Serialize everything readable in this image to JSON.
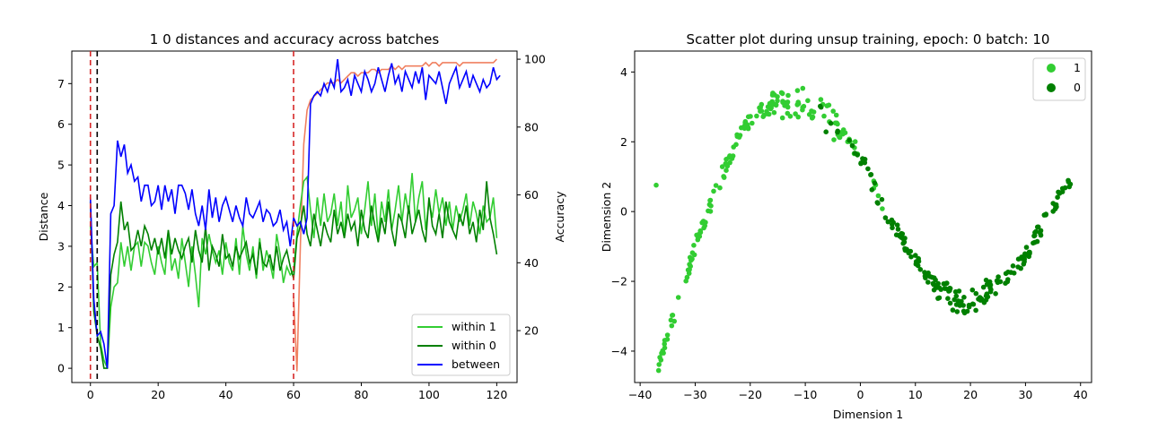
{
  "chart_data": [
    {
      "type": "line",
      "title": "1 0 distances and accuracy across batches",
      "xlabel": "",
      "ylabel": "Distance",
      "y2label": "Accuracy",
      "xlim": [
        -5.5,
        126
      ],
      "ylim": [
        -0.35,
        7.8
      ],
      "y2lim": [
        4.7,
        102.4
      ],
      "xticks": [
        0,
        20,
        40,
        60,
        80,
        100,
        120
      ],
      "yticks": [
        0,
        1,
        2,
        3,
        4,
        5,
        6,
        7
      ],
      "y2ticks": [
        20,
        40,
        60,
        80,
        100
      ],
      "vlines": [
        {
          "x": 0,
          "color": "#d62728"
        },
        {
          "x": 2,
          "color": "#000000"
        },
        {
          "x": 60,
          "color": "#d62728"
        }
      ],
      "legend_position": "lower right",
      "series": [
        {
          "name": "within 1",
          "color": "#32cd32",
          "axis": "left",
          "x_start": 0,
          "values": [
            3.5,
            2.5,
            2.6,
            0.6,
            0.2,
            0.0,
            1.5,
            2.0,
            2.1,
            3.1,
            2.5,
            3.0,
            2.4,
            3.0,
            3.1,
            2.5,
            3.1,
            3.0,
            2.6,
            2.3,
            3.0,
            2.6,
            2.3,
            3.4,
            2.4,
            2.7,
            2.2,
            3.2,
            2.6,
            2.0,
            3.0,
            2.3,
            1.5,
            3.2,
            2.8,
            3.3,
            2.9,
            2.6,
            2.9,
            2.3,
            3.1,
            2.6,
            2.4,
            3.2,
            2.3,
            3.5,
            2.8,
            2.4,
            3.0,
            2.2,
            3.2,
            2.4,
            2.9,
            2.6,
            2.2,
            3.3,
            2.8,
            2.1,
            2.5,
            2.3,
            2.4,
            3.3,
            4.0,
            4.6,
            4.7,
            3.9,
            3.2,
            4.2,
            3.5,
            4.3,
            3.6,
            3.8,
            4.3,
            3.5,
            4.1,
            3.2,
            4.5,
            3.7,
            3.9,
            4.2,
            3.3,
            3.9,
            4.6,
            3.5,
            4.3,
            3.2,
            4.1,
            3.6,
            4.4,
            3.4,
            3.9,
            4.5,
            3.6,
            4.3,
            3.8,
            4.8,
            3.6,
            4.2,
            4.6,
            3.4,
            4.1,
            3.7,
            4.4,
            3.8,
            4.2,
            3.5,
            4.1,
            3.4,
            4.0,
            3.6,
            3.9,
            4.3,
            3.5,
            4.1,
            3.8,
            3.3,
            4.0,
            3.6,
            3.7,
            4.2,
            3.2
          ]
        },
        {
          "name": "within 0",
          "color": "#008000",
          "axis": "left",
          "x_start": 0,
          "values": [
            4.1,
            1.4,
            0.8,
            0.5,
            0.0,
            0.0,
            2.3,
            2.8,
            3.1,
            4.1,
            3.4,
            3.6,
            2.9,
            3.0,
            3.4,
            3.0,
            3.5,
            3.3,
            2.9,
            3.2,
            2.8,
            3.2,
            2.7,
            3.4,
            2.8,
            3.2,
            2.9,
            2.7,
            3.0,
            3.2,
            2.6,
            3.4,
            2.9,
            2.6,
            3.5,
            2.4,
            3.0,
            2.8,
            2.5,
            3.3,
            2.7,
            2.8,
            2.5,
            3.0,
            2.7,
            2.9,
            3.1,
            2.6,
            2.8,
            2.3,
            3.1,
            2.6,
            2.5,
            2.8,
            2.4,
            3.0,
            2.4,
            2.7,
            2.9,
            2.5,
            2.2,
            3.2,
            3.5,
            4.0,
            3.3,
            3.0,
            3.8,
            3.4,
            3.0,
            3.6,
            3.3,
            3.1,
            3.9,
            3.3,
            3.6,
            3.2,
            3.8,
            3.4,
            3.6,
            3.0,
            3.9,
            3.4,
            3.2,
            4.0,
            3.5,
            3.1,
            3.7,
            3.3,
            4.1,
            3.4,
            3.0,
            3.8,
            3.6,
            3.2,
            4.0,
            3.3,
            3.6,
            3.9,
            3.4,
            3.1,
            4.2,
            3.5,
            3.3,
            3.8,
            3.2,
            4.1,
            3.6,
            3.4,
            3.2,
            3.8,
            3.5,
            4.0,
            3.3,
            3.6,
            3.1,
            3.9,
            3.4,
            4.6,
            3.7,
            3.3,
            2.8
          ]
        },
        {
          "name": "between",
          "color": "#0000ff",
          "axis": "left",
          "x_start": 0,
          "values": [
            4.2,
            1.7,
            0.8,
            0.9,
            0.6,
            0.0,
            3.8,
            4.0,
            5.6,
            5.2,
            5.5,
            4.8,
            5.0,
            4.6,
            4.7,
            4.1,
            4.5,
            4.5,
            4.0,
            4.1,
            4.5,
            3.9,
            4.5,
            4.1,
            4.4,
            3.8,
            4.5,
            4.5,
            4.3,
            3.9,
            4.4,
            3.8,
            3.5,
            4.0,
            3.4,
            4.4,
            3.7,
            4.2,
            3.6,
            4.0,
            4.2,
            3.9,
            3.6,
            4.0,
            3.7,
            3.5,
            4.2,
            3.8,
            3.7,
            3.9,
            4.1,
            3.6,
            3.9,
            3.8,
            3.5,
            3.6,
            3.9,
            3.4,
            3.6,
            3.0,
            3.7,
            3.5,
            3.6,
            3.3,
            3.7,
            6.5,
            6.7,
            6.8,
            6.7,
            7.0,
            6.8,
            7.1,
            6.9,
            7.6,
            6.8,
            6.9,
            7.1,
            6.7,
            7.2,
            7.0,
            6.8,
            7.3,
            7.1,
            6.8,
            7.0,
            7.4,
            7.1,
            6.8,
            7.2,
            7.5,
            7.0,
            7.2,
            6.8,
            7.3,
            7.1,
            6.9,
            7.3,
            7.0,
            7.4,
            6.6,
            7.2,
            7.1,
            7.0,
            7.3,
            6.9,
            6.5,
            7.0,
            7.2,
            7.4,
            6.9,
            7.1,
            7.3,
            6.9,
            7.2,
            7.0,
            6.8,
            7.1,
            6.9,
            7.0,
            7.4,
            7.1,
            7.2
          ]
        },
        {
          "name": "",
          "color": "#f08060",
          "axis": "right",
          "x_start": 60,
          "values": [
            30,
            8,
            45,
            75,
            85,
            88,
            89,
            90,
            91,
            92,
            93,
            93,
            93,
            94,
            93,
            94,
            95,
            96,
            96,
            95,
            96,
            96,
            96,
            97,
            97,
            96,
            97,
            97,
            97,
            98,
            97,
            98,
            97,
            98,
            98,
            98,
            98,
            98,
            98,
            99,
            98,
            99,
            99,
            98,
            99,
            99,
            99,
            99,
            99,
            98,
            99,
            99,
            99,
            99,
            99,
            99,
            99,
            99,
            99,
            99,
            100
          ]
        }
      ]
    },
    {
      "type": "scatter",
      "title": "Scatter plot during unsup training, epoch: 0 batch: 10",
      "xlabel": "Dimension 1",
      "ylabel": "Dimension 2",
      "xlim": [
        -41,
        42
      ],
      "ylim": [
        -4.9,
        4.6
      ],
      "xticks": [
        -40,
        -30,
        -20,
        -10,
        0,
        10,
        20,
        30,
        40
      ],
      "yticks": [
        -4,
        -2,
        0,
        2,
        4
      ],
      "legend_position": "upper right",
      "series": [
        {
          "name": "1",
          "color": "#32cd32"
        },
        {
          "name": "0",
          "color": "#008000"
        }
      ]
    }
  ]
}
